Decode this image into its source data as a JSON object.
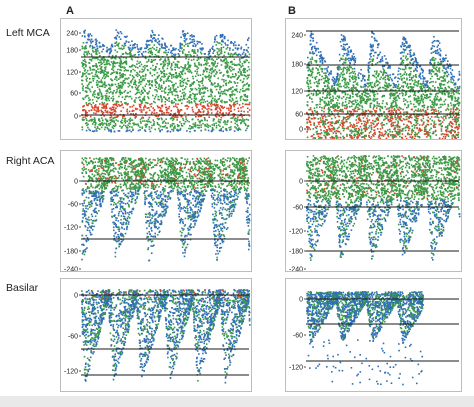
{
  "columns": [
    "A",
    "B"
  ],
  "rows": [
    "Left MCA",
    "Right ACA",
    "Basilar"
  ],
  "panels": [
    {
      "row": "Left MCA",
      "column": "A",
      "ticks": [
        "240",
        "180",
        "120",
        "60",
        "0"
      ],
      "colors": {
        "low": "#2f6fb5",
        "mid": "#3a9a45",
        "high": "#d8452b"
      }
    },
    {
      "row": "Left MCA",
      "column": "B",
      "ticks": [
        "240",
        "180",
        "120",
        "60",
        "0"
      ],
      "colors": {
        "low": "#2f6fb5",
        "mid": "#3a9a45",
        "high": "#d8452b"
      }
    },
    {
      "row": "Right ACA",
      "column": "A",
      "ticks": [
        "0",
        "-60",
        "-120",
        "-180",
        "-240"
      ],
      "colors": {
        "low": "#2f6fb5",
        "mid": "#3a9a45",
        "high": "#d8452b"
      }
    },
    {
      "row": "Right ACA",
      "column": "B",
      "ticks": [
        "0",
        "-60",
        "-120",
        "-180",
        "-240"
      ],
      "colors": {
        "low": "#2f6fb5",
        "mid": "#3a9a45",
        "high": "#d8452b"
      }
    },
    {
      "row": "Basilar",
      "column": "A",
      "ticks": [
        "0",
        "-60",
        "-120"
      ],
      "colors": {
        "low": "#2f6fb5",
        "mid": "#3a9a45",
        "high": "#d8452b"
      }
    },
    {
      "row": "Basilar",
      "column": "B",
      "ticks": [
        "0",
        "-60",
        "-120"
      ],
      "colors": {
        "low": "#2f6fb5",
        "mid": "#3a9a45",
        "high": "#d8452b"
      }
    }
  ]
}
